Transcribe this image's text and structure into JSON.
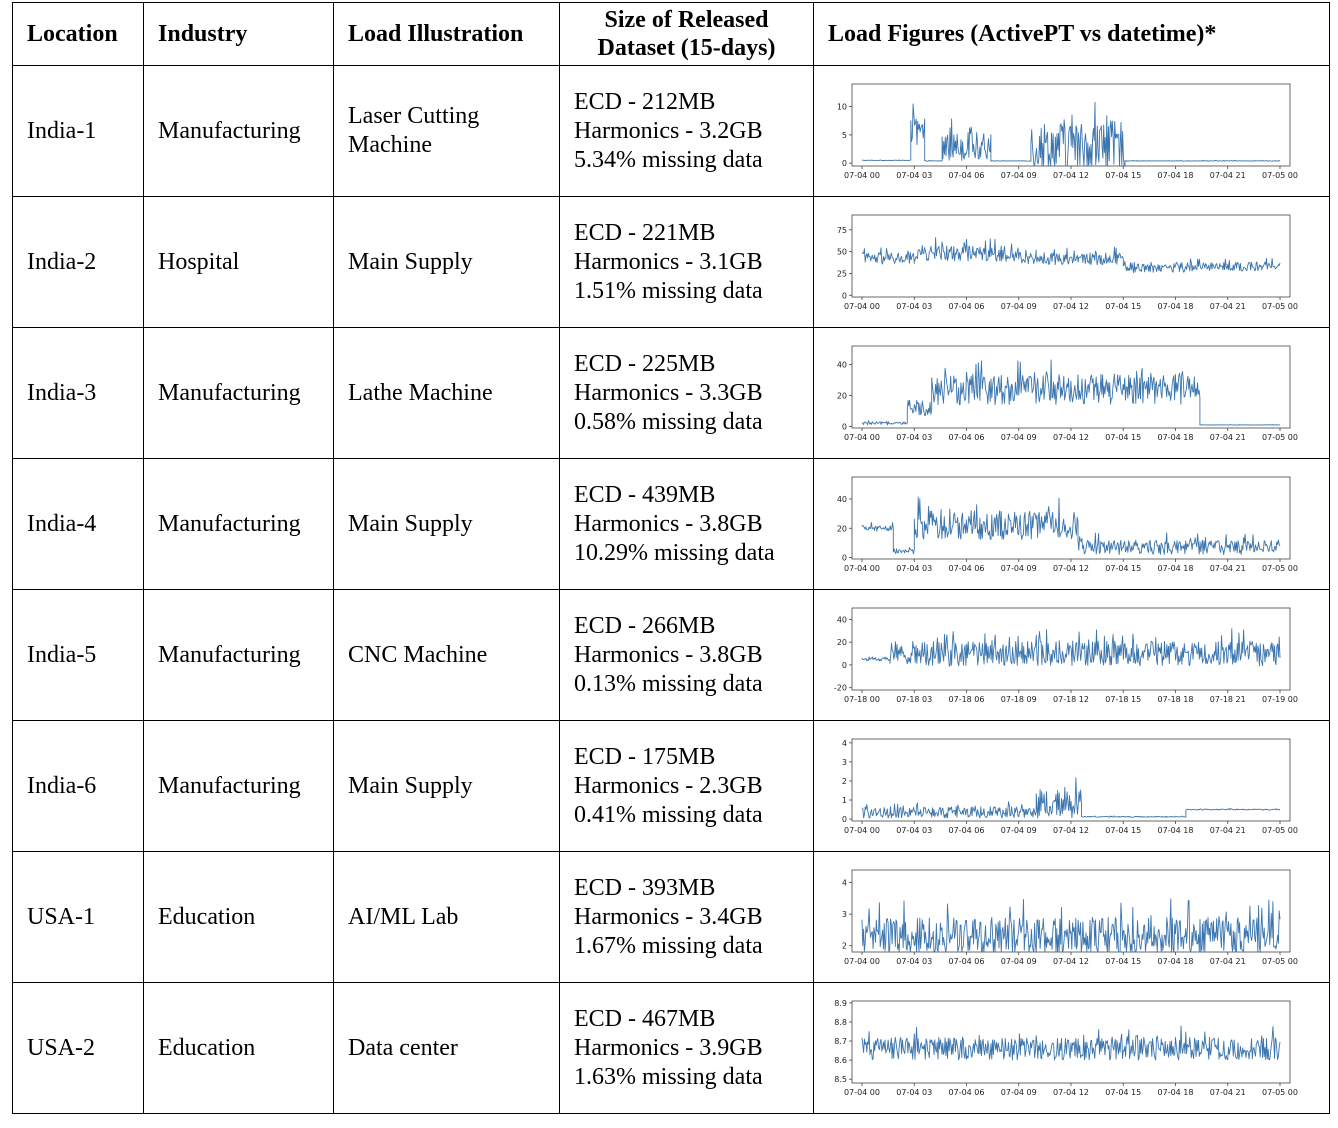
{
  "headers": {
    "location": "Location",
    "industry": "Industry",
    "load": "Load Illustration",
    "size_line1": "Size of Released",
    "size_line2": "Dataset (15-days)",
    "figures": "Load Figures (ActivePT vs datetime)*"
  },
  "rows": [
    {
      "location": "India-1",
      "industry": "Manufacturing",
      "load_l1": "Laser Cutting",
      "load_l2": "Machine",
      "ecd": "ECD - 212MB",
      "harmonics": "Harmonics - 3.2GB",
      "missing": "5.34% missing data"
    },
    {
      "location": "India-2",
      "industry": "Hospital",
      "load_l1": "Main Supply",
      "load_l2": "",
      "ecd": "ECD - 221MB",
      "harmonics": "Harmonics - 3.1GB",
      "missing": "1.51% missing data"
    },
    {
      "location": "India-3",
      "industry": "Manufacturing",
      "load_l1": "Lathe Machine",
      "load_l2": "",
      "ecd": "ECD - 225MB",
      "harmonics": "Harmonics - 3.3GB",
      "missing": "0.58% missing data"
    },
    {
      "location": "India-4",
      "industry": "Manufacturing",
      "load_l1": "Main Supply",
      "load_l2": "",
      "ecd": "ECD - 439MB",
      "harmonics": "Harmonics - 3.8GB",
      "missing": "10.29% missing data"
    },
    {
      "location": "India-5",
      "industry": "Manufacturing",
      "load_l1": "CNC Machine",
      "load_l2": "",
      "ecd": "ECD - 266MB",
      "harmonics": "Harmonics - 3.8GB",
      "missing": "0.13% missing data"
    },
    {
      "location": "India-6",
      "industry": "Manufacturing",
      "load_l1": "Main Supply",
      "load_l2": "",
      "ecd": "ECD - 175MB",
      "harmonics": "Harmonics - 2.3GB",
      "missing": "0.41% missing data"
    },
    {
      "location": "USA-1",
      "industry": "Education",
      "load_l1": "AI/ML Lab",
      "load_l2": "",
      "ecd": "ECD - 393MB",
      "harmonics": "Harmonics - 3.4GB",
      "missing": "1.67% missing data"
    },
    {
      "location": "USA-2",
      "industry": "Education",
      "load_l1": "Data center",
      "load_l2": "",
      "ecd": "ECD - 467MB",
      "harmonics": "Harmonics - 3.9GB",
      "missing": "1.63% missing data"
    }
  ],
  "style": {
    "line_color": "#3b75af"
  },
  "chart_data": [
    {
      "type": "line",
      "x_ticks": [
        "07-04 00",
        "07-04 03",
        "07-04 06",
        "07-04 09",
        "07-04 12",
        "07-04 15",
        "07-04 18",
        "07-04 21",
        "07-05 00"
      ],
      "y_ticks": [
        0,
        5,
        10
      ],
      "ylim": [
        -0.5,
        14
      ],
      "segments": [
        {
          "x": [
            0,
            2.8
          ],
          "base": 0.5,
          "amp": 0.1
        },
        {
          "x": [
            2.8,
            3.6
          ],
          "base": 5,
          "amp": 7
        },
        {
          "x": [
            3.6,
            4.6
          ],
          "base": 0.4,
          "amp": 0.1
        },
        {
          "x": [
            4.6,
            7.4
          ],
          "base": 3,
          "amp": 5
        },
        {
          "x": [
            7.4,
            9.7
          ],
          "base": 0.4,
          "amp": 0.1
        },
        {
          "x": [
            9.7,
            15.1
          ],
          "base": 3,
          "amp": 9
        },
        {
          "x": [
            15.1,
            24
          ],
          "base": 0.4,
          "amp": 0.1
        }
      ]
    },
    {
      "type": "line",
      "x_ticks": [
        "07-04 00",
        "07-04 03",
        "07-04 06",
        "07-04 09",
        "07-04 12",
        "07-04 15",
        "07-04 18",
        "07-04 21",
        "07-05 00"
      ],
      "y_ticks": [
        0,
        25,
        50,
        75
      ],
      "ylim": [
        -2,
        92
      ],
      "segments": [
        {
          "x": [
            0,
            3
          ],
          "base": 42,
          "amp": 14
        },
        {
          "x": [
            3,
            8
          ],
          "base": 48,
          "amp": 18
        },
        {
          "x": [
            8,
            10
          ],
          "base": 44,
          "amp": 16
        },
        {
          "x": [
            10,
            15
          ],
          "base": 42,
          "amp": 14
        },
        {
          "x": [
            15,
            19
          ],
          "base": 32,
          "amp": 12
        },
        {
          "x": [
            19,
            24
          ],
          "base": 33,
          "amp": 10
        }
      ]
    },
    {
      "type": "line",
      "x_ticks": [
        "07-04 00",
        "07-04 03",
        "07-04 06",
        "07-04 09",
        "07-04 12",
        "07-04 15",
        "07-04 18",
        "07-04 21",
        "07-05 00"
      ],
      "y_ticks": [
        0,
        20,
        40
      ],
      "ylim": [
        -1,
        52
      ],
      "segments": [
        {
          "x": [
            0,
            2.6
          ],
          "base": 2,
          "amp": 2
        },
        {
          "x": [
            2.6,
            4
          ],
          "base": 12,
          "amp": 10
        },
        {
          "x": [
            4,
            19.4
          ],
          "base": 24,
          "amp": 20
        },
        {
          "x": [
            19.4,
            24
          ],
          "base": 1,
          "amp": 0.2
        }
      ]
    },
    {
      "type": "line",
      "x_ticks": [
        "07-04 00",
        "07-04 03",
        "07-04 06",
        "07-04 09",
        "07-04 12",
        "07-04 15",
        "07-04 18",
        "07-04 21",
        "07-05 00"
      ],
      "y_ticks": [
        0,
        20,
        40
      ],
      "ylim": [
        -1,
        55
      ],
      "segments": [
        {
          "x": [
            0,
            1.8
          ],
          "base": 20,
          "amp": 4
        },
        {
          "x": [
            1.8,
            3
          ],
          "base": 4,
          "amp": 3
        },
        {
          "x": [
            3,
            12.4
          ],
          "base": 22,
          "amp": 20
        },
        {
          "x": [
            12.4,
            24
          ],
          "base": 7,
          "amp": 10
        }
      ]
    },
    {
      "type": "line",
      "x_ticks": [
        "07-18 00",
        "07-18 03",
        "07-18 06",
        "07-18 09",
        "07-18 12",
        "07-18 15",
        "07-18 18",
        "07-18 21",
        "07-19 00"
      ],
      "y_ticks": [
        -20,
        0,
        20,
        40
      ],
      "ylim": [
        -22,
        50
      ],
      "segments": [
        {
          "x": [
            0,
            1.6
          ],
          "base": 5,
          "amp": 3
        },
        {
          "x": [
            1.6,
            15.6
          ],
          "base": 10,
          "amp": 22
        },
        {
          "x": [
            15.6,
            24
          ],
          "base": 10,
          "amp": 22
        }
      ]
    },
    {
      "type": "line",
      "x_ticks": [
        "07-04 00",
        "07-04 03",
        "07-04 06",
        "07-04 09",
        "07-04 12",
        "07-04 15",
        "07-04 18",
        "07-04 21",
        "07-05 00"
      ],
      "y_ticks": [
        0,
        1,
        2,
        3,
        4
      ],
      "ylim": [
        -0.1,
        4.2
      ],
      "segments": [
        {
          "x": [
            0,
            10
          ],
          "base": 0.35,
          "amp": 0.6
        },
        {
          "x": [
            10,
            12.6
          ],
          "base": 0.8,
          "amp": 1.5
        },
        {
          "x": [
            12.6,
            18.6
          ],
          "base": 0.12,
          "amp": 0.05
        },
        {
          "x": [
            18.6,
            24
          ],
          "base": 0.5,
          "amp": 0.05
        }
      ]
    },
    {
      "type": "line",
      "x_ticks": [
        "07-04 00",
        "07-04 03",
        "07-04 06",
        "07-04 09",
        "07-04 12",
        "07-04 15",
        "07-04 18",
        "07-04 21",
        "07-05 00"
      ],
      "y_ticks": [
        2,
        3,
        4
      ],
      "ylim": [
        1.8,
        4.4
      ],
      "segments": [
        {
          "x": [
            0,
            24
          ],
          "base": 2.3,
          "amp": 1.2
        }
      ]
    },
    {
      "type": "line",
      "x_ticks": [
        "07-04 00",
        "07-04 03",
        "07-04 06",
        "07-04 09",
        "07-04 12",
        "07-04 15",
        "07-04 18",
        "07-04 21",
        "07-05 00"
      ],
      "y_ticks": [
        8.5,
        8.6,
        8.7,
        8.8,
        8.9
      ],
      "ylim": [
        8.48,
        8.91
      ],
      "segments": [
        {
          "x": [
            0,
            24
          ],
          "base": 8.66,
          "amp": 0.12
        }
      ]
    }
  ]
}
